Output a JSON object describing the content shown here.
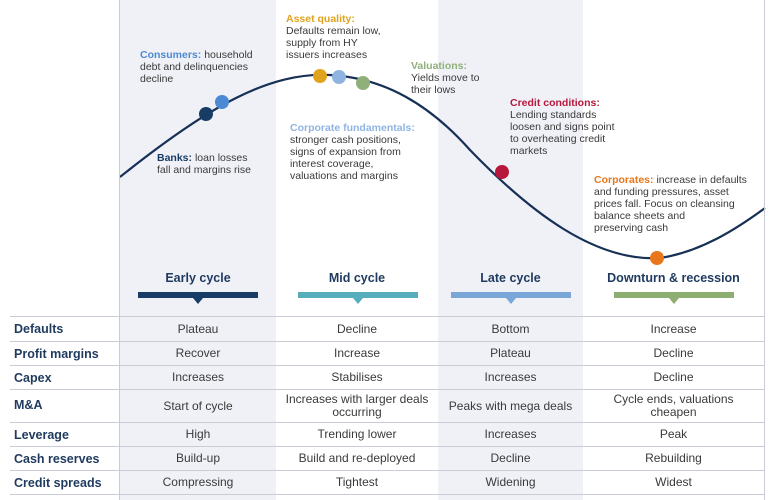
{
  "colors": {
    "navy": "#1f3a5f",
    "curve": "#173055",
    "band": "#f0f1f7",
    "early": "#173c66",
    "mid": "#56aebd",
    "late": "#7ba6d8",
    "downturn": "#8dae71",
    "consumers": "#4b89d4",
    "banks": "#173c66",
    "asset_quality": "#e0a31c",
    "corporate_fundamentals": "#8fb4e2",
    "valuations": "#8fb07a",
    "credit_conditions": "#b8173c",
    "corporates": "#e8761a"
  },
  "annotations": {
    "consumers": {
      "label": "Consumers:",
      "text_lines": [
        "household",
        "debt and delinquencies",
        "decline"
      ]
    },
    "banks": {
      "label": "Banks:",
      "text_lines": [
        "loan losses",
        "fall and margins rise"
      ]
    },
    "asset_quality": {
      "label": "Asset quality:",
      "text_lines": [
        "Defaults remain low,",
        "supply from HY",
        "issuers increases"
      ]
    },
    "corporate_fundamentals": {
      "label": "Corporate fundamentals:",
      "text_lines": [
        "stronger cash positions,",
        "signs of expansion from",
        "interest coverage,",
        "valuations and margins"
      ]
    },
    "valuations": {
      "label": "Valuations:",
      "text_lines": [
        "Yields move to",
        "their lows"
      ]
    },
    "credit_conditions": {
      "label": "Credit conditions:",
      "text_lines": [
        "Lending standards",
        "loosen and signs point",
        "to overheating credit",
        "markets"
      ]
    },
    "corporates": {
      "label": "Corporates:",
      "text_lines": [
        "increase in defaults",
        "and funding pressures, asset",
        "prices fall. Focus on cleansing",
        "balance sheets and",
        "preserving cash"
      ]
    }
  },
  "phases": [
    "Early cycle",
    "Mid cycle",
    "Late cycle",
    "Downturn & recession"
  ],
  "rows": [
    {
      "label": "Defaults",
      "values": [
        "Plateau",
        "Decline",
        "Bottom",
        "Increase"
      ]
    },
    {
      "label": "Profit margins",
      "values": [
        "Recover",
        "Increase",
        "Plateau",
        "Decline"
      ]
    },
    {
      "label": "Capex",
      "values": [
        "Increases",
        "Stabilises",
        "Increases",
        "Decline"
      ]
    },
    {
      "label": "M&A",
      "values": [
        "Start of cycle",
        "Increases with larger deals occurring",
        "Peaks with mega deals",
        "Cycle ends, valuations cheapen"
      ]
    },
    {
      "label": "Leverage",
      "values": [
        "High",
        "Trending lower",
        "Increases",
        "Peak"
      ]
    },
    {
      "label": "Cash reserves",
      "values": [
        "Build-up",
        "Build and re-deployed",
        "Decline",
        "Rebuilding"
      ]
    },
    {
      "label": "Credit spreads",
      "values": [
        "Compressing",
        "Tightest",
        "Widening",
        "Widest"
      ]
    }
  ]
}
